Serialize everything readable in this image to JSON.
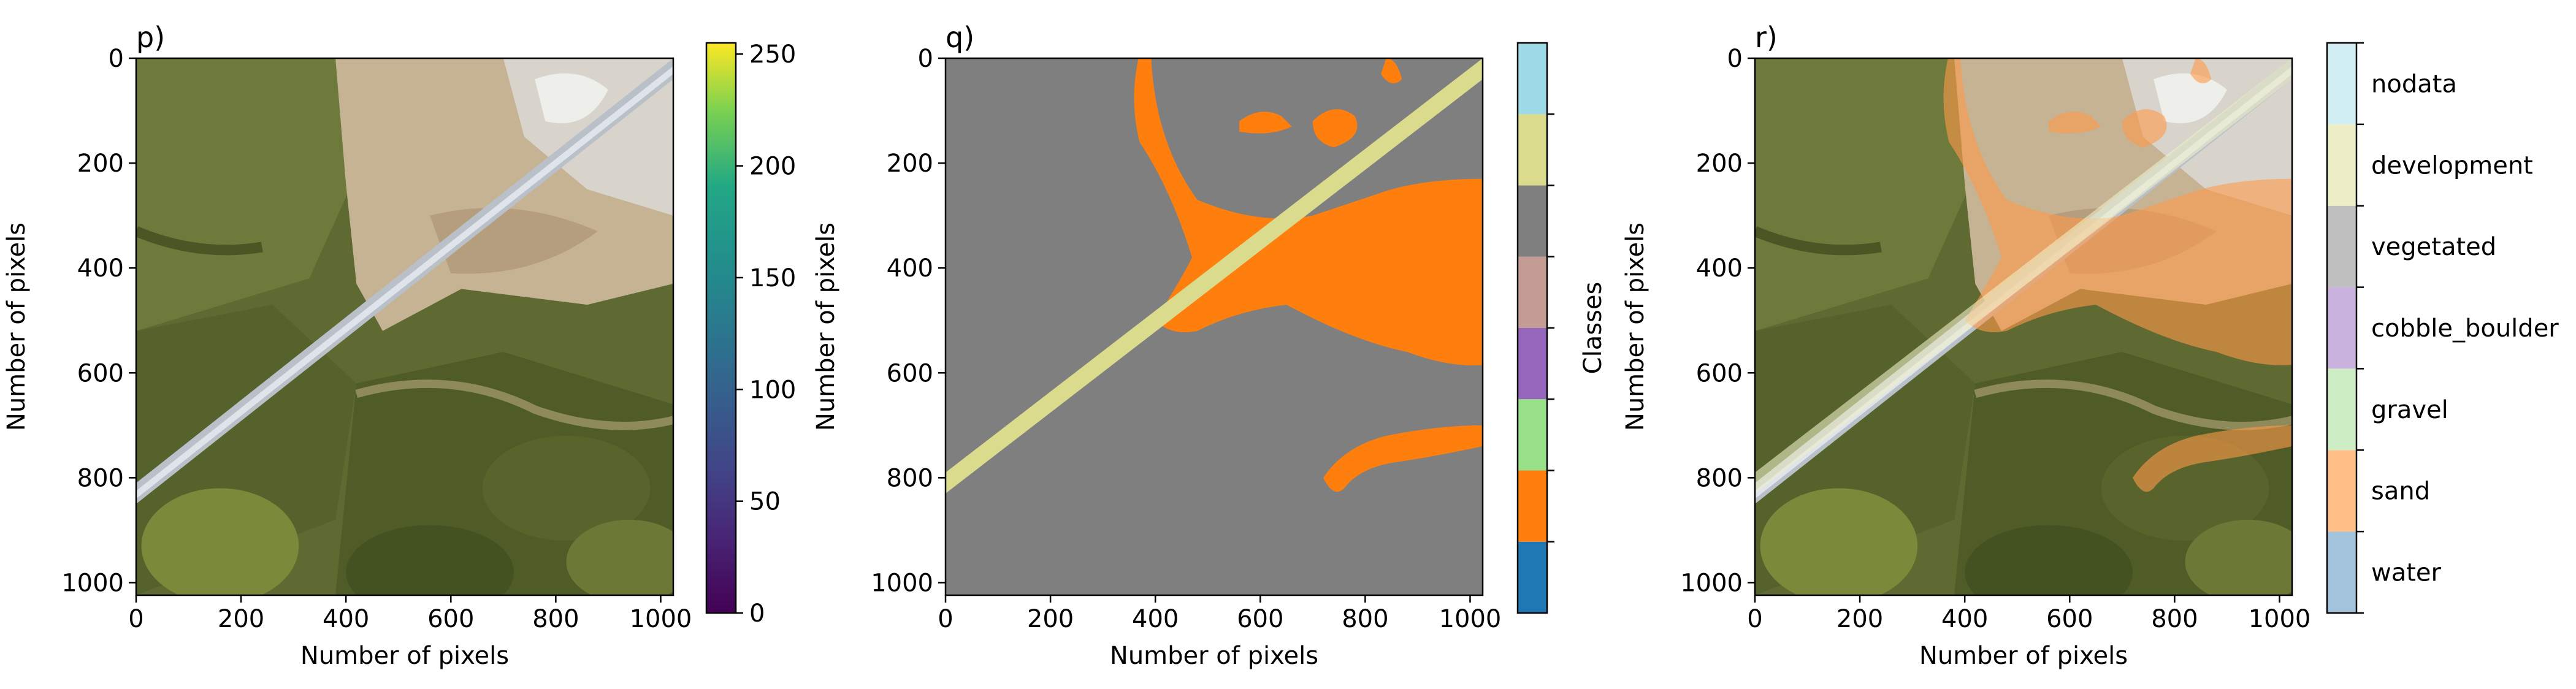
{
  "chart_data": [
    {
      "type": "image",
      "panel": "p)",
      "xlabel": "Number of pixels",
      "ylabel": "Number of pixels",
      "xlim": [
        0,
        1024
      ],
      "ylim": [
        1024,
        0
      ],
      "xticks": [
        0,
        200,
        400,
        600,
        800,
        1000
      ],
      "yticks": [
        0,
        200,
        400,
        600,
        800,
        1000
      ],
      "colorbar": {
        "kind": "continuous",
        "colormap": "viridis",
        "range": [
          0,
          255
        ],
        "ticks": [
          0,
          50,
          100,
          150,
          200,
          250
        ],
        "label": ""
      }
    },
    {
      "type": "heatmap",
      "panel": "q)",
      "xlabel": "Number of pixels",
      "ylabel": "Number of pixels",
      "xlim": [
        0,
        1024
      ],
      "ylim": [
        1024,
        0
      ],
      "xticks": [
        0,
        200,
        400,
        600,
        800,
        1000
      ],
      "yticks": [
        0,
        200,
        400,
        600,
        800,
        1000
      ],
      "colorbar": {
        "kind": "categorical",
        "label": "Classes",
        "show_labels": false,
        "classes": [
          {
            "name": "water",
            "color": "#1f77b4"
          },
          {
            "name": "sand",
            "color": "#ff7f0e"
          },
          {
            "name": "gravel",
            "color": "#98df8a"
          },
          {
            "name": "cobble_boulder",
            "color": "#9467bd"
          },
          {
            "name": "vegetated",
            "color": "#c49c94"
          },
          {
            "name": "development",
            "color": "#7f7f7f"
          },
          {
            "name": "nodata",
            "color": "#dbdb8d"
          },
          {
            "name": "",
            "color": "#9edae5"
          }
        ]
      }
    },
    {
      "type": "image",
      "panel": "r)",
      "xlabel": "Number of pixels",
      "ylabel": "Number of pixels",
      "xlim": [
        0,
        1024
      ],
      "ylim": [
        1024,
        0
      ],
      "xticks": [
        0,
        200,
        400,
        600,
        800,
        1000
      ],
      "yticks": [
        0,
        200,
        400,
        600,
        800,
        1000
      ],
      "colorbar": {
        "kind": "categorical",
        "label": "",
        "show_labels": true,
        "classes": [
          {
            "name": "water",
            "color": "#a3c3dd"
          },
          {
            "name": "sand",
            "color": "#ffbf87"
          },
          {
            "name": "gravel",
            "color": "#cdeec5"
          },
          {
            "name": "cobble_boulder",
            "color": "#c9b3de"
          },
          {
            "name": "vegetated",
            "color": "#bfbfbf"
          },
          {
            "name": "development",
            "color": "#eeeec6"
          },
          {
            "name": "nodata",
            "color": "#d1eef2"
          }
        ]
      }
    }
  ]
}
